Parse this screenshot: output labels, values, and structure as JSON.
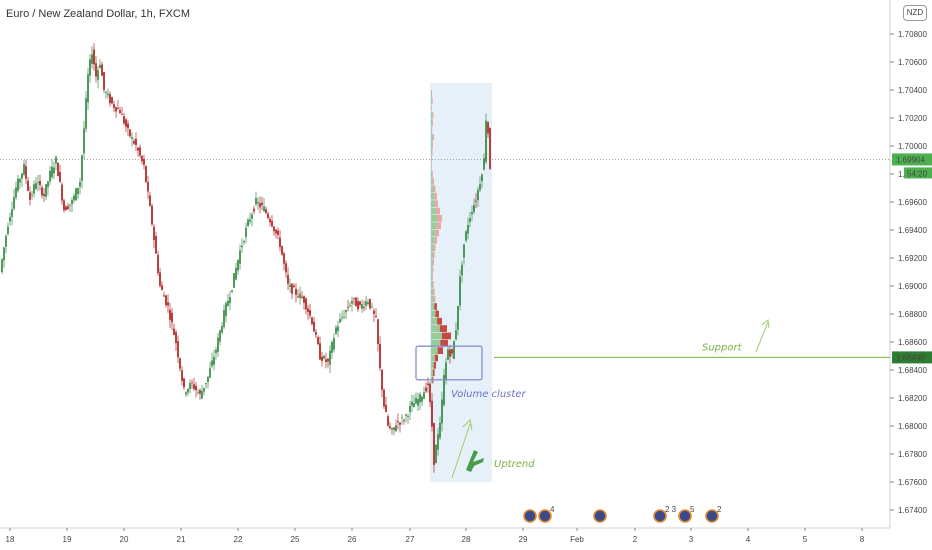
{
  "header": {
    "title": "Euro / New Zealand Dollar, 1h, FXCM",
    "currency_badge": "NZD"
  },
  "colors": {
    "up": "#3c8f4a",
    "down": "#b32b2b",
    "support": "#7cb342",
    "cluster_box": "#8a8fd0",
    "highlight": "#dbe9f7"
  },
  "chart_data": {
    "type": "candlestick",
    "title": "Euro / New Zealand Dollar, 1h, FXCM",
    "ylim": [
      1.673,
      1.71
    ],
    "y_ticks": [
      "1.70800",
      "1.70600",
      "1.70400",
      "1.70200",
      "1.70000",
      "1.69800",
      "1.69600",
      "1.69400",
      "1.69200",
      "1.69000",
      "1.68800",
      "1.68600",
      "1.68400",
      "1.68200",
      "1.68000",
      "1.67800",
      "1.67600",
      "1.67400"
    ],
    "x_ticks": [
      "18",
      "19",
      "20",
      "21",
      "22",
      "25",
      "26",
      "27",
      "28",
      "29",
      "Feb",
      "2",
      "3",
      "4",
      "5",
      "8"
    ],
    "path_points": [
      [
        0,
        1.691
      ],
      [
        4,
        1.6945
      ],
      [
        8,
        1.697
      ],
      [
        12,
        1.6985
      ],
      [
        15,
        1.6962
      ],
      [
        18,
        1.6975
      ],
      [
        22,
        1.6965
      ],
      [
        25,
        1.698
      ],
      [
        28,
        1.699
      ],
      [
        32,
        1.6955
      ],
      [
        36,
        1.696
      ],
      [
        40,
        1.6975
      ],
      [
        44,
        1.705
      ],
      [
        46,
        1.7068
      ],
      [
        48,
        1.705
      ],
      [
        50,
        1.706
      ],
      [
        52,
        1.704
      ],
      [
        56,
        1.703
      ],
      [
        60,
        1.7025
      ],
      [
        64,
        1.701
      ],
      [
        68,
        1.7
      ],
      [
        72,
        1.6985
      ],
      [
        76,
        1.6945
      ],
      [
        80,
        1.69
      ],
      [
        84,
        1.6885
      ],
      [
        88,
        1.686
      ],
      [
        92,
        1.6825
      ],
      [
        96,
        1.683
      ],
      [
        100,
        1.6822
      ],
      [
        104,
        1.6835
      ],
      [
        108,
        1.6855
      ],
      [
        112,
        1.688
      ],
      [
        116,
        1.69
      ],
      [
        120,
        1.6925
      ],
      [
        124,
        1.6945
      ],
      [
        128,
        1.696
      ],
      [
        132,
        1.6955
      ],
      [
        136,
        1.6945
      ],
      [
        140,
        1.693
      ],
      [
        144,
        1.69
      ],
      [
        148,
        1.6895
      ],
      [
        152,
        1.689
      ],
      [
        156,
        1.6875
      ],
      [
        160,
        1.685
      ],
      [
        164,
        1.6845
      ],
      [
        168,
        1.687
      ],
      [
        172,
        1.688
      ],
      [
        176,
        1.689
      ],
      [
        180,
        1.6885
      ],
      [
        184,
        1.689
      ],
      [
        188,
        1.6875
      ],
      [
        190,
        1.684
      ],
      [
        192,
        1.6815
      ],
      [
        194,
        1.68
      ],
      [
        196,
        1.6795
      ],
      [
        198,
        1.6802
      ],
      [
        202,
        1.6805
      ],
      [
        206,
        1.6815
      ],
      [
        210,
        1.682
      ],
      [
        214,
        1.683
      ],
      [
        216,
        1.68
      ],
      [
        217,
        1.6775
      ],
      [
        218,
        1.6785
      ],
      [
        220,
        1.68
      ],
      [
        222,
        1.6835
      ],
      [
        224,
        1.6855
      ],
      [
        226,
        1.685
      ],
      [
        228,
        1.687
      ],
      [
        230,
        1.6905
      ],
      [
        232,
        1.693
      ],
      [
        234,
        1.6945
      ],
      [
        236,
        1.6955
      ],
      [
        238,
        1.6962
      ],
      [
        240,
        1.6975
      ],
      [
        242,
        1.699
      ],
      [
        243,
        1.702
      ],
      [
        244,
        1.701
      ],
      [
        245,
        1.6985
      ]
    ],
    "volume_profile": [
      0.05,
      0.08,
      0.04,
      0.12,
      0.1,
      0.06,
      0.15,
      0.1,
      0.08,
      0.05,
      0.04,
      0.1,
      0.15,
      0.22,
      0.3,
      0.35,
      0.45,
      0.55,
      0.5,
      0.4,
      0.3,
      0.22,
      0.18,
      0.15,
      0.12,
      0.1,
      0.14,
      0.18,
      0.22,
      0.3,
      0.4,
      0.55,
      0.8,
      1.0,
      0.85,
      0.6,
      0.35,
      0.25,
      0.18,
      0.12
    ],
    "last_price": "1.69904",
    "countdown": "54:20",
    "support_level": "1.68490",
    "support_price": 1.6849,
    "annotations": {
      "volume_cluster": "Volume cluster",
      "support": "Support",
      "uptrend": "Uptrend"
    },
    "event_markers": [
      {
        "x": 530,
        "count": ""
      },
      {
        "x": 545,
        "count": "4"
      },
      {
        "x": 600,
        "count": ""
      },
      {
        "x": 660,
        "count": "2 3"
      },
      {
        "x": 685,
        "count": "5"
      },
      {
        "x": 712,
        "count": "2"
      }
    ]
  }
}
